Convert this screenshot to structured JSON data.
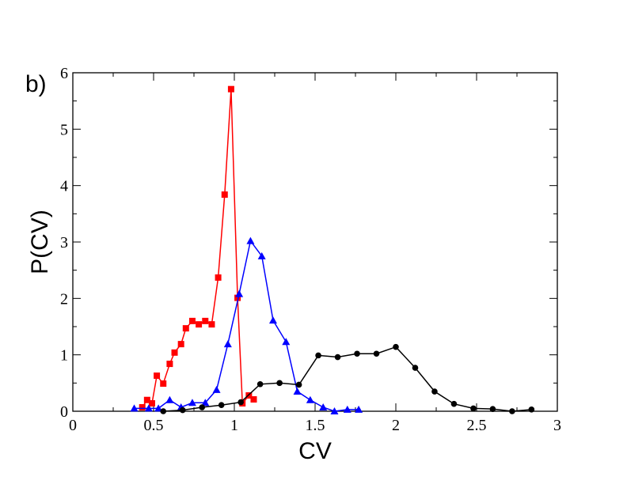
{
  "chart_data": {
    "type": "line",
    "panel_label": "b)",
    "title": "",
    "xlabel": "CV",
    "ylabel": "P(CV)",
    "xlim": [
      0,
      3
    ],
    "ylim": [
      0,
      6
    ],
    "xticks": [
      0,
      0.5,
      1,
      1.5,
      2,
      2.5,
      3
    ],
    "xtick_labels": [
      "0",
      "0.5",
      "1",
      "1.5",
      "2",
      "2.5",
      "3"
    ],
    "yticks": [
      0,
      1,
      2,
      3,
      4,
      5,
      6
    ],
    "ytick_labels": [
      "0",
      "1",
      "2",
      "3",
      "4",
      "5",
      "6"
    ],
    "grid": false,
    "series": [
      {
        "color": "#ff0000",
        "marker": "square",
        "points": [
          [
            0.43,
            0.07
          ],
          [
            0.46,
            0.2
          ],
          [
            0.49,
            0.14
          ],
          [
            0.52,
            0.63
          ],
          [
            0.56,
            0.49
          ],
          [
            0.6,
            0.84
          ],
          [
            0.63,
            1.04
          ],
          [
            0.67,
            1.19
          ],
          [
            0.7,
            1.47
          ],
          [
            0.74,
            1.6
          ],
          [
            0.78,
            1.54
          ],
          [
            0.82,
            1.6
          ],
          [
            0.86,
            1.54
          ],
          [
            0.9,
            2.37
          ],
          [
            0.94,
            3.84
          ],
          [
            0.98,
            5.71
          ],
          [
            1.02,
            2.01
          ],
          [
            1.05,
            0.14
          ],
          [
            1.09,
            0.28
          ],
          [
            1.12,
            0.21
          ]
        ]
      },
      {
        "color": "#0000ff",
        "marker": "triangle",
        "points": [
          [
            0.38,
            0.05
          ],
          [
            0.47,
            0.05
          ],
          [
            0.53,
            0.05
          ],
          [
            0.6,
            0.2
          ],
          [
            0.67,
            0.07
          ],
          [
            0.74,
            0.15
          ],
          [
            0.82,
            0.15
          ],
          [
            0.89,
            0.38
          ],
          [
            0.96,
            1.19
          ],
          [
            1.03,
            2.08
          ],
          [
            1.1,
            3.02
          ],
          [
            1.17,
            2.75
          ],
          [
            1.24,
            1.61
          ],
          [
            1.32,
            1.23
          ],
          [
            1.39,
            0.35
          ],
          [
            1.47,
            0.2
          ],
          [
            1.55,
            0.07
          ],
          [
            1.62,
            0.0
          ],
          [
            1.7,
            0.03
          ],
          [
            1.77,
            0.03
          ]
        ]
      },
      {
        "color": "#000000",
        "marker": "circle",
        "points": [
          [
            0.56,
            0.0
          ],
          [
            0.68,
            0.02
          ],
          [
            0.8,
            0.07
          ],
          [
            0.92,
            0.11
          ],
          [
            1.04,
            0.16
          ],
          [
            1.16,
            0.48
          ],
          [
            1.28,
            0.5
          ],
          [
            1.4,
            0.47
          ],
          [
            1.52,
            0.99
          ],
          [
            1.64,
            0.96
          ],
          [
            1.76,
            1.02
          ],
          [
            1.88,
            1.02
          ],
          [
            2.0,
            1.14
          ],
          [
            2.12,
            0.77
          ],
          [
            2.24,
            0.35
          ],
          [
            2.36,
            0.13
          ],
          [
            2.48,
            0.05
          ],
          [
            2.6,
            0.04
          ],
          [
            2.72,
            0.0
          ],
          [
            2.84,
            0.03
          ]
        ]
      }
    ]
  }
}
